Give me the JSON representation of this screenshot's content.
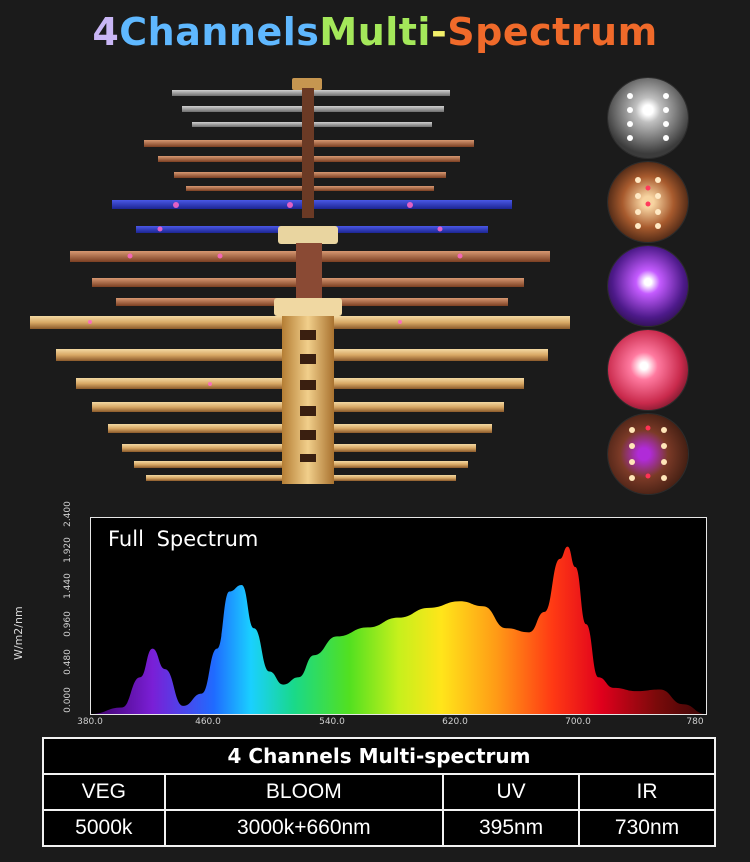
{
  "header": {
    "title_parts": [
      {
        "text": "4 ",
        "color": "#c9b6f5"
      },
      {
        "text": "Channels ",
        "color": "#5fb8ff"
      },
      {
        "text": "Multi",
        "color": "#a4e85a"
      },
      {
        "text": "-",
        "color": "#f2f06a"
      },
      {
        "text": "Spectrum",
        "color": "#f06a2a"
      }
    ]
  },
  "thumbnails": [
    {
      "icon": "white-led-closeup"
    },
    {
      "icon": "warm-led-closeup"
    },
    {
      "icon": "uv-led-closeup"
    },
    {
      "icon": "red-led-closeup"
    },
    {
      "icon": "mixed-led-closeup"
    }
  ],
  "spectrum": {
    "title": "Full  Spectrum",
    "y_axis_label": "W/m2/nm",
    "y_ticks": [
      "0.000",
      "0.480",
      "0.960",
      "1.440",
      "1.920",
      "2.400"
    ],
    "x_ticks": [
      "380.0",
      "460.0",
      "540.0",
      "620.0",
      "700.0",
      "780"
    ]
  },
  "chart_data": {
    "type": "area",
    "title": "Full  Spectrum",
    "xlabel": "",
    "ylabel": "W/m2/nm",
    "xlim": [
      380,
      780
    ],
    "ylim": [
      0,
      2.4
    ],
    "series": [
      {
        "x": [
          380,
          400,
          412,
          420,
          428,
          440,
          452,
          462,
          470,
          478,
          486,
          496,
          505,
          515,
          525,
          540,
          560,
          580,
          600,
          620,
          635,
          650,
          665,
          675,
          685,
          690,
          695,
          702,
          710,
          720,
          735,
          750,
          765,
          780
        ],
        "values": [
          0.0,
          0.08,
          0.45,
          0.8,
          0.55,
          0.1,
          0.25,
          0.8,
          1.5,
          1.58,
          1.05,
          0.52,
          0.36,
          0.45,
          0.72,
          0.95,
          1.06,
          1.18,
          1.3,
          1.38,
          1.32,
          1.05,
          1.0,
          1.25,
          1.9,
          2.05,
          1.8,
          1.1,
          0.45,
          0.32,
          0.28,
          0.3,
          0.12,
          0.0
        ]
      }
    ]
  },
  "table": {
    "title": "4 Channels Multi-spectrum",
    "headers": [
      "VEG",
      "BLOOM",
      "UV",
      "IR"
    ],
    "values": [
      "5000k",
      "3000k+660nm",
      "395nm",
      "730nm"
    ]
  }
}
